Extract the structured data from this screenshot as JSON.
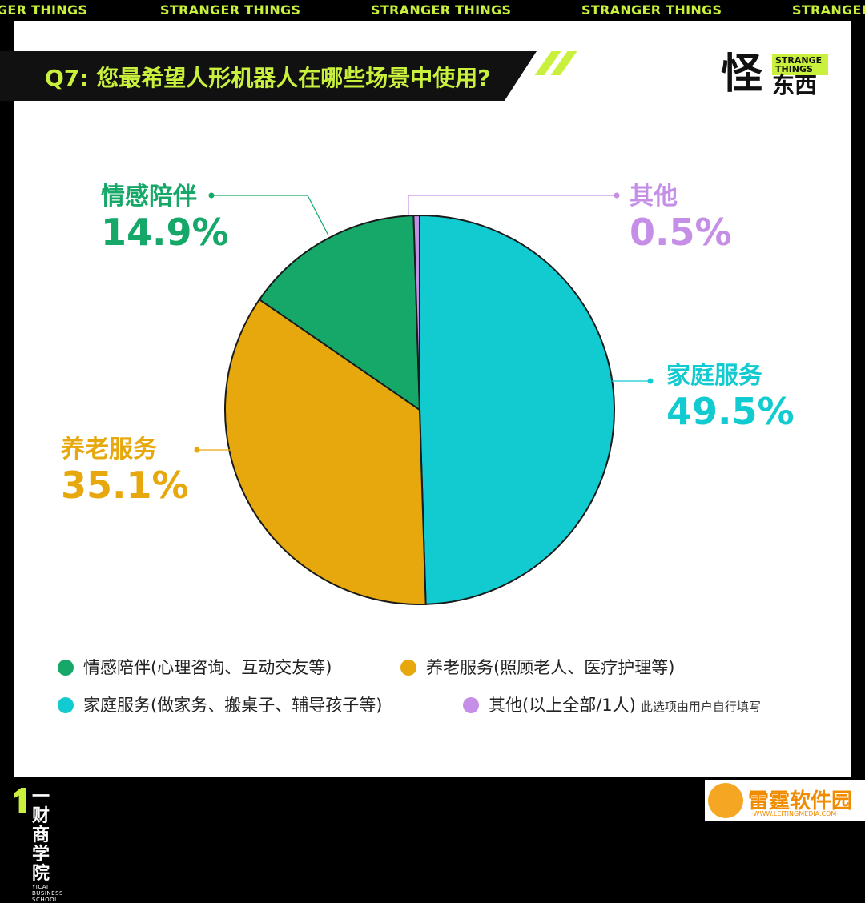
{
  "ticker": {
    "items": [
      "GER THINGS",
      "STRANGER THINGS",
      "STRANGER THINGS",
      "STRANGER THINGS",
      "STRANGER"
    ]
  },
  "header": {
    "title": "Q7: 您最希望人形机器人在哪些场景中使用?"
  },
  "logo": {
    "char": "怪",
    "tag": "STRANGE THINGS",
    "sub": "东西"
  },
  "colors": {
    "accent": "#c8f03c",
    "emotional": "#16a868",
    "elderly": "#e6a80c",
    "household": "#12cbd0",
    "other": "#c58fe8"
  },
  "chart_data": {
    "type": "pie",
    "title": "Q7: 您最希望人形机器人在哪些场景中使用?",
    "slices": [
      {
        "label": "家庭服务",
        "value": 49.5,
        "pct_text": "49.5%",
        "color": "#12cbd0"
      },
      {
        "label": "养老服务",
        "value": 35.1,
        "pct_text": "35.1%",
        "color": "#e6a80c"
      },
      {
        "label": "情感陪伴",
        "value": 14.9,
        "pct_text": "14.9%",
        "color": "#16a868"
      },
      {
        "label": "其他",
        "value": 0.5,
        "pct_text": "0.5%",
        "color": "#c58fe8"
      }
    ],
    "start": "12 o'clock",
    "direction": "clockwise"
  },
  "legend": {
    "items": [
      {
        "text": "情感陪伴(心理咨询、互动交友等)",
        "color": "#16a868"
      },
      {
        "text": "养老服务(照顾老人、医疗护理等)",
        "color": "#e6a80c"
      },
      {
        "text": "家庭服务(做家务、搬桌子、辅导孩子等)",
        "color": "#12cbd0"
      },
      {
        "text": "其他(以上全部/1人)",
        "color": "#c58fe8"
      }
    ],
    "note": "此选项由用户自行填写"
  },
  "footer": {
    "brand": "一财商学院",
    "brand_sub": "YICAI BUSINESS SCHOOL"
  },
  "watermark": {
    "text": "雷霆软件园",
    "url": "·WWW.LEITINGMEDIA.COM·"
  }
}
